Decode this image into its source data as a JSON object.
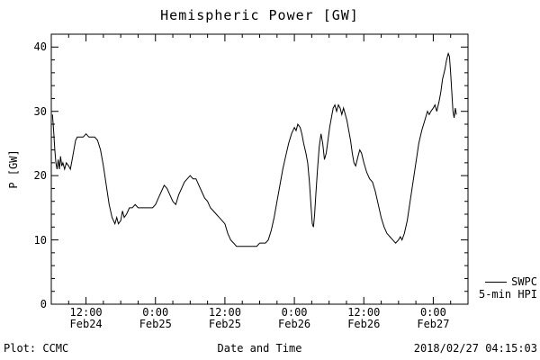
{
  "chart_data": {
    "type": "line",
    "title": "Hemispheric Power [GW]",
    "xlabel": "Date and Time",
    "ylabel": "P [GW]",
    "ylim": [
      0,
      42
    ],
    "xlim_hours": [
      6,
      78
    ],
    "y_ticks": [
      0,
      10,
      20,
      30,
      40
    ],
    "x_ticks": [
      {
        "t": 12,
        "time": "12:00",
        "date": "Feb24"
      },
      {
        "t": 24,
        "time": "0:00",
        "date": "Feb25"
      },
      {
        "t": 36,
        "time": "12:00",
        "date": "Feb25"
      },
      {
        "t": 48,
        "time": "0:00",
        "date": "Feb26"
      },
      {
        "t": 60,
        "time": "12:00",
        "date": "Feb26"
      },
      {
        "t": 72,
        "time": "0:00",
        "date": "Feb27"
      }
    ],
    "x_minor_step_hours": 3,
    "y_minor_step": 2,
    "grid": false,
    "legend_position": "right-outside-bottom",
    "line_color": "#000000",
    "series": [
      {
        "name": "SWPC 5-min HPI",
        "color": "#000000",
        "points": [
          [
            6.2,
            29.5
          ],
          [
            6.4,
            27
          ],
          [
            6.6,
            24
          ],
          [
            6.8,
            22
          ],
          [
            7,
            21
          ],
          [
            7.2,
            22.5
          ],
          [
            7.4,
            21
          ],
          [
            7.6,
            23
          ],
          [
            7.8,
            21.5
          ],
          [
            8,
            22
          ],
          [
            8.3,
            21
          ],
          [
            8.6,
            22
          ],
          [
            9,
            21.5
          ],
          [
            9.3,
            21
          ],
          [
            9.6,
            22.5
          ],
          [
            9.9,
            24
          ],
          [
            10.2,
            25.5
          ],
          [
            10.5,
            26
          ],
          [
            11,
            26
          ],
          [
            11.5,
            26
          ],
          [
            12,
            26.5
          ],
          [
            12.5,
            26
          ],
          [
            13,
            26
          ],
          [
            13.5,
            26
          ],
          [
            14,
            25.5
          ],
          [
            14.5,
            24
          ],
          [
            15,
            21.5
          ],
          [
            15.5,
            18.5
          ],
          [
            16,
            15.5
          ],
          [
            16.5,
            13.5
          ],
          [
            17,
            12.5
          ],
          [
            17.3,
            13.5
          ],
          [
            17.6,
            12.5
          ],
          [
            18,
            13
          ],
          [
            18.3,
            14.5
          ],
          [
            18.6,
            13.5
          ],
          [
            19,
            14
          ],
          [
            19.5,
            15
          ],
          [
            20,
            15
          ],
          [
            20.5,
            15.5
          ],
          [
            21,
            15
          ],
          [
            21.5,
            15
          ],
          [
            22,
            15
          ],
          [
            22.5,
            15
          ],
          [
            23,
            15
          ],
          [
            23.5,
            15
          ],
          [
            24,
            15.5
          ],
          [
            24.5,
            16.5
          ],
          [
            25,
            17.5
          ],
          [
            25.5,
            18.5
          ],
          [
            26,
            18
          ],
          [
            26.5,
            17
          ],
          [
            27,
            16
          ],
          [
            27.5,
            15.5
          ],
          [
            28,
            17
          ],
          [
            28.5,
            18
          ],
          [
            29,
            19
          ],
          [
            29.5,
            19.5
          ],
          [
            30,
            20
          ],
          [
            30.5,
            19.5
          ],
          [
            31,
            19.5
          ],
          [
            31.5,
            18.5
          ],
          [
            32,
            17.5
          ],
          [
            32.5,
            16.5
          ],
          [
            33,
            16
          ],
          [
            33.5,
            15
          ],
          [
            34,
            14.5
          ],
          [
            34.5,
            14
          ],
          [
            35,
            13.5
          ],
          [
            35.5,
            13
          ],
          [
            36,
            12.5
          ],
          [
            36.5,
            11
          ],
          [
            37,
            10
          ],
          [
            37.5,
            9.5
          ],
          [
            38,
            9
          ],
          [
            39,
            9
          ],
          [
            40,
            9
          ],
          [
            41,
            9
          ],
          [
            41.5,
            9
          ],
          [
            42,
            9.5
          ],
          [
            43,
            9.5
          ],
          [
            43.5,
            10
          ],
          [
            44,
            11.5
          ],
          [
            44.5,
            13.5
          ],
          [
            45,
            16
          ],
          [
            45.5,
            18.5
          ],
          [
            46,
            21
          ],
          [
            46.5,
            23
          ],
          [
            47,
            25
          ],
          [
            47.5,
            26.5
          ],
          [
            48,
            27.5
          ],
          [
            48.3,
            27
          ],
          [
            48.6,
            28
          ],
          [
            49,
            27.5
          ],
          [
            49.3,
            26.5
          ],
          [
            49.6,
            25
          ],
          [
            50,
            23.5
          ],
          [
            50.3,
            22
          ],
          [
            50.6,
            19
          ],
          [
            50.9,
            15
          ],
          [
            51.1,
            12.5
          ],
          [
            51.3,
            12
          ],
          [
            51.5,
            14
          ],
          [
            51.7,
            17
          ],
          [
            52,
            21
          ],
          [
            52.3,
            24.5
          ],
          [
            52.6,
            26.5
          ],
          [
            52.9,
            25
          ],
          [
            53.2,
            22.5
          ],
          [
            53.5,
            23.5
          ],
          [
            53.8,
            25.5
          ],
          [
            54.1,
            27.5
          ],
          [
            54.4,
            29
          ],
          [
            54.7,
            30.5
          ],
          [
            55,
            31
          ],
          [
            55.3,
            30
          ],
          [
            55.6,
            31
          ],
          [
            55.9,
            30.5
          ],
          [
            56.2,
            29.5
          ],
          [
            56.5,
            30.5
          ],
          [
            56.8,
            29.5
          ],
          [
            57.1,
            28.5
          ],
          [
            57.4,
            27
          ],
          [
            57.7,
            25.5
          ],
          [
            58,
            23.5
          ],
          [
            58.3,
            22
          ],
          [
            58.6,
            21.5
          ],
          [
            59,
            23
          ],
          [
            59.3,
            24
          ],
          [
            59.6,
            23.5
          ],
          [
            60,
            22
          ],
          [
            60.5,
            20.5
          ],
          [
            61,
            19.5
          ],
          [
            61.5,
            19
          ],
          [
            62,
            17.5
          ],
          [
            62.5,
            15.5
          ],
          [
            63,
            13.5
          ],
          [
            63.5,
            12
          ],
          [
            64,
            11
          ],
          [
            64.5,
            10.5
          ],
          [
            65,
            10
          ],
          [
            65.5,
            9.5
          ],
          [
            66,
            10
          ],
          [
            66.3,
            10.5
          ],
          [
            66.6,
            10
          ],
          [
            67,
            11
          ],
          [
            67.5,
            13
          ],
          [
            68,
            16
          ],
          [
            68.5,
            19
          ],
          [
            69,
            22
          ],
          [
            69.5,
            25
          ],
          [
            70,
            27
          ],
          [
            70.5,
            28.5
          ],
          [
            71,
            30
          ],
          [
            71.3,
            29.5
          ],
          [
            71.6,
            30
          ],
          [
            72,
            30.5
          ],
          [
            72.3,
            31
          ],
          [
            72.6,
            30
          ],
          [
            73,
            31.5
          ],
          [
            73.3,
            33
          ],
          [
            73.6,
            35
          ],
          [
            74,
            36.5
          ],
          [
            74.3,
            38
          ],
          [
            74.6,
            39
          ],
          [
            74.8,
            38.5
          ],
          [
            75,
            36
          ],
          [
            75.2,
            33
          ],
          [
            75.4,
            30
          ],
          [
            75.6,
            29
          ],
          [
            75.8,
            30.5
          ],
          [
            76,
            29.5
          ]
        ]
      }
    ]
  },
  "legend": {
    "line1": "SWPC",
    "line2": "5-min HPI"
  },
  "footer": {
    "left": "Plot: CCMC",
    "right": "2018/02/27 04:15:03"
  }
}
